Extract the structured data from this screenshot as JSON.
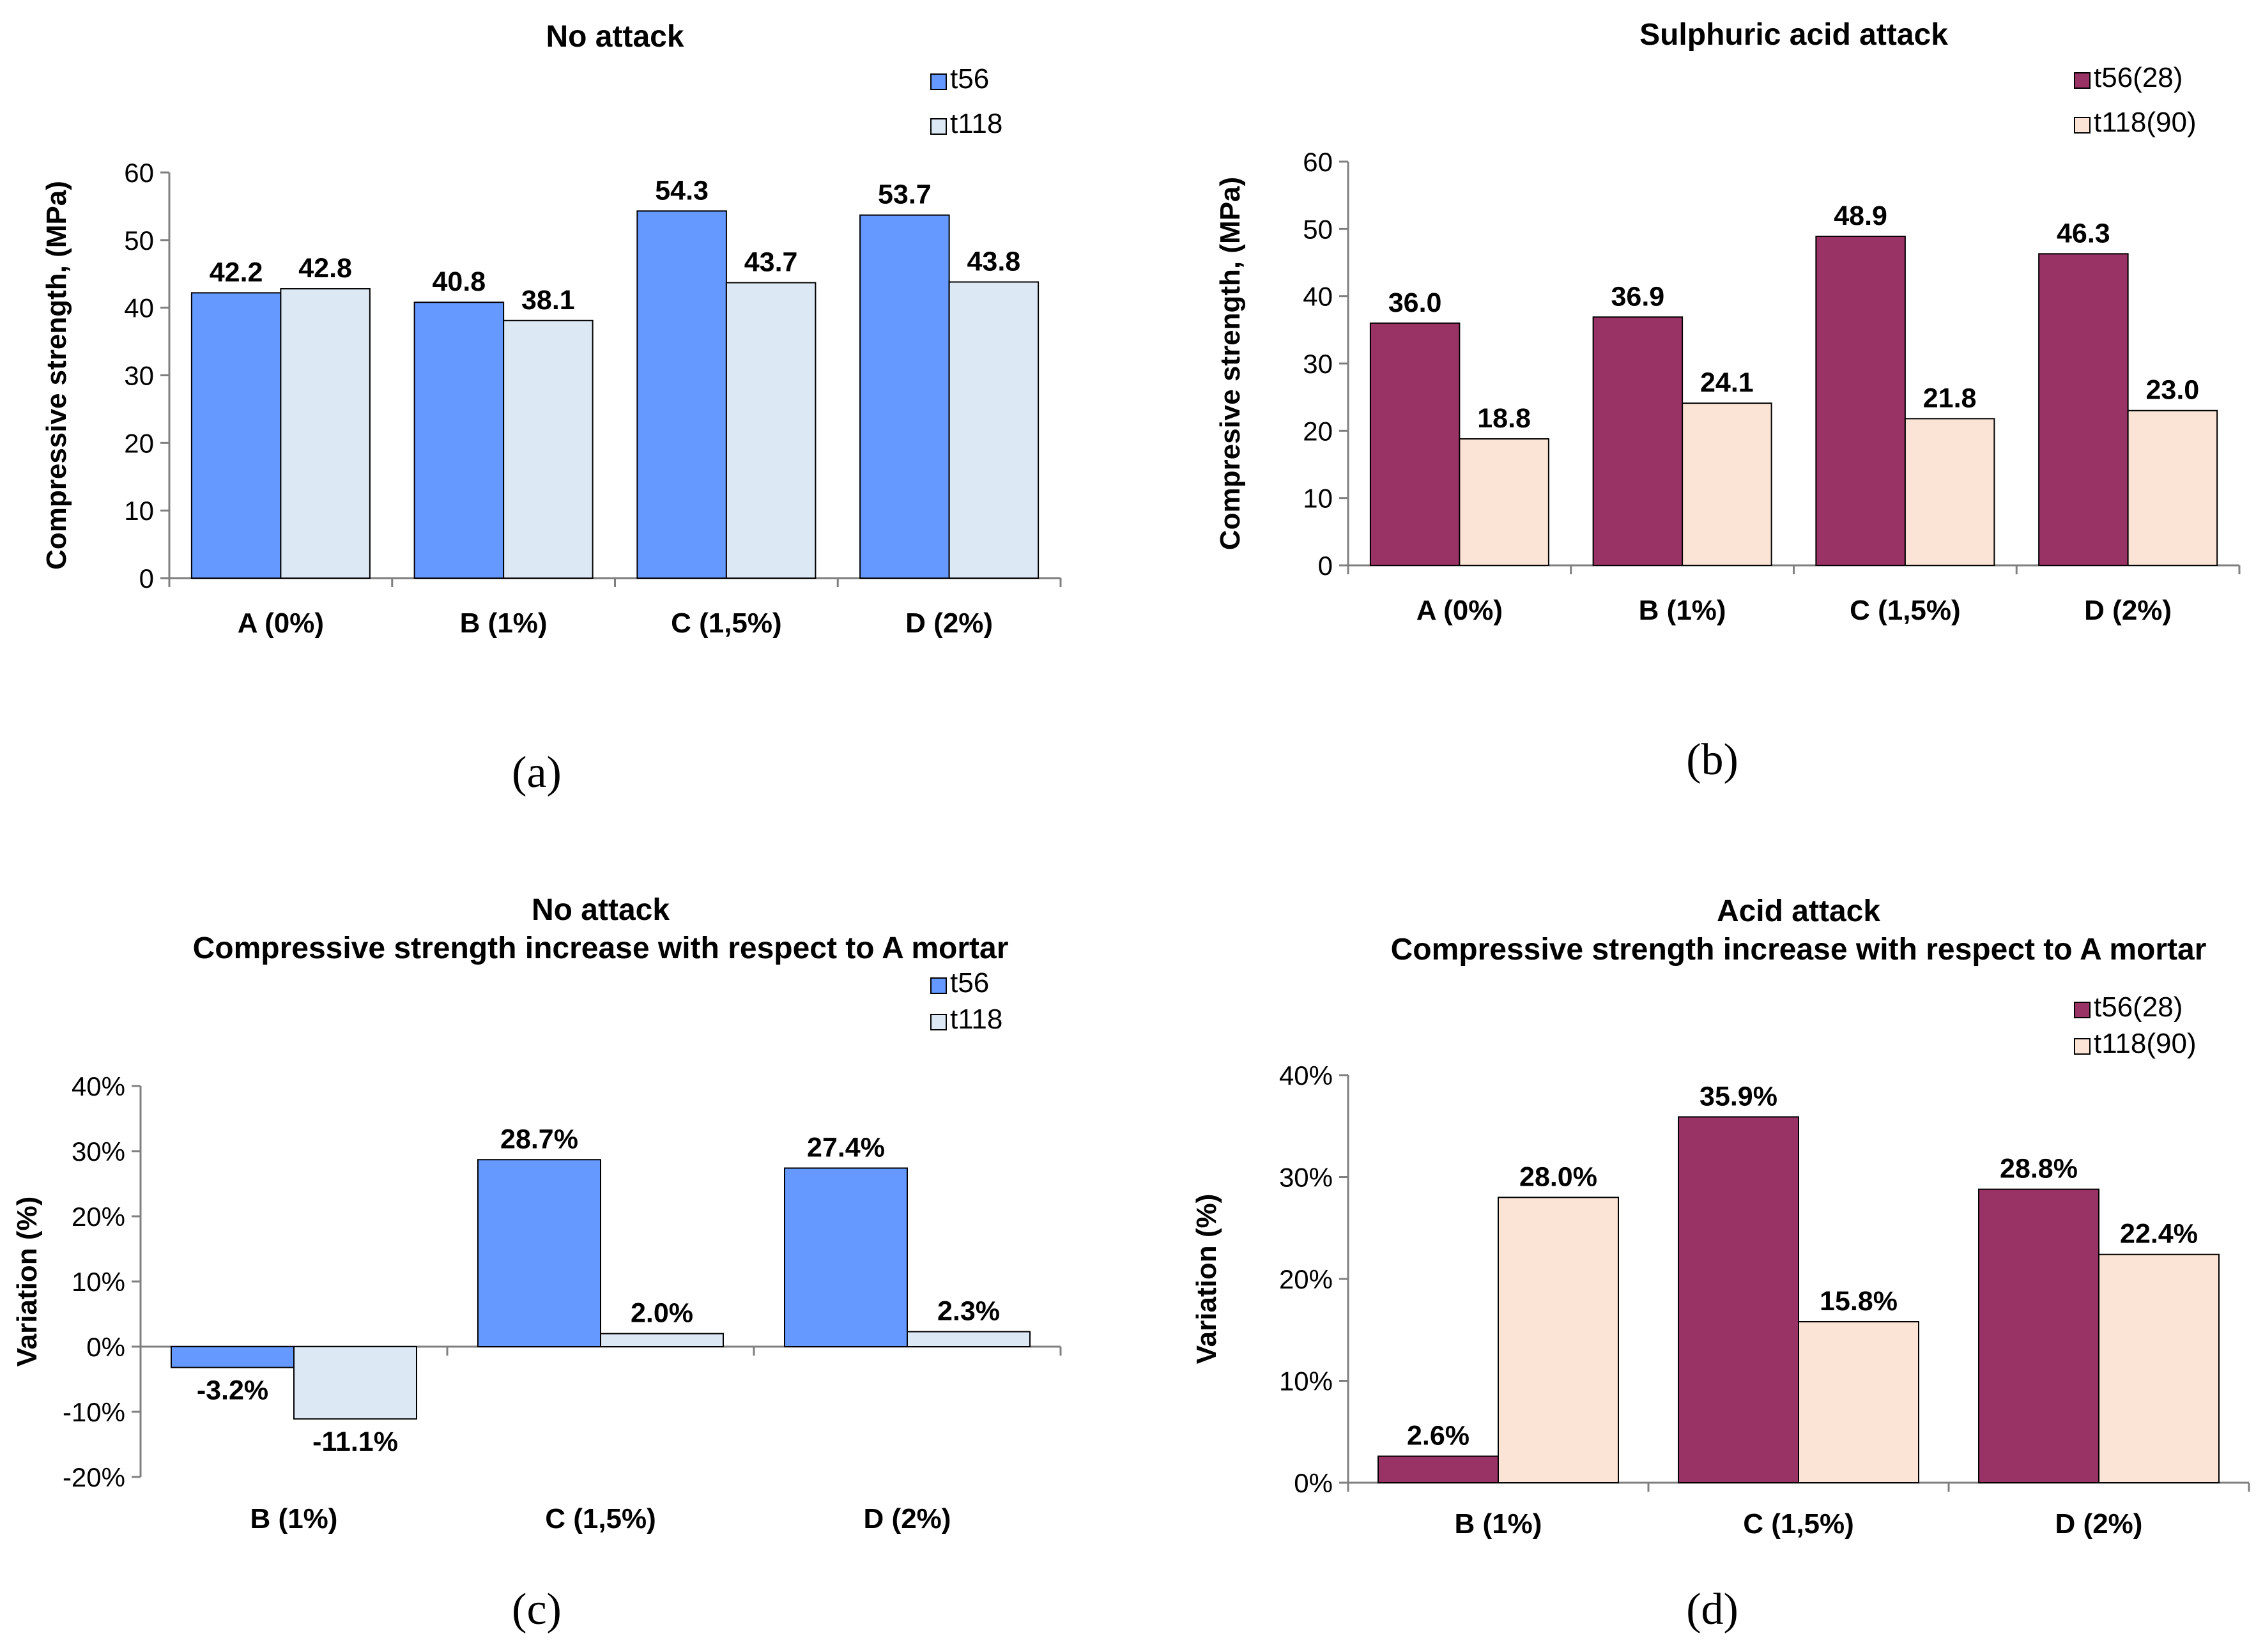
{
  "chart_data": [
    {
      "id": "a",
      "type": "bar",
      "title_lines": [
        "No attack"
      ],
      "ylabel": "Compressive strength, (MPa)",
      "xlabel": "",
      "ylim": [
        0,
        60
      ],
      "yticks": [
        0,
        10,
        20,
        30,
        40,
        50,
        60
      ],
      "ytick_labels": [
        "0",
        "10",
        "20",
        "30",
        "40",
        "50",
        "60"
      ],
      "categories": [
        "A (0%)",
        "B (1%)",
        "C (1,5%)",
        "D (2%)"
      ],
      "series": [
        {
          "name": "t56",
          "values": [
            42.2,
            40.8,
            54.3,
            53.7
          ],
          "labels": [
            "42.2",
            "40.8",
            "54.3",
            "53.7"
          ],
          "color": "#6699ff"
        },
        {
          "name": "t118",
          "values": [
            42.8,
            38.1,
            43.7,
            43.8
          ],
          "labels": [
            "42.8",
            "38.1",
            "43.7",
            "43.8"
          ],
          "color": "#dde8f5"
        }
      ],
      "caption": "(a)"
    },
    {
      "id": "b",
      "type": "bar",
      "title_lines": [
        "Sulphuric acid attack"
      ],
      "ylabel": "Compresive strength, (MPa)",
      "xlabel": "",
      "ylim": [
        0,
        60
      ],
      "yticks": [
        0,
        10,
        20,
        30,
        40,
        50,
        60
      ],
      "ytick_labels": [
        "0",
        "10",
        "20",
        "30",
        "40",
        "50",
        "60"
      ],
      "categories": [
        "A (0%)",
        "B (1%)",
        "C (1,5%)",
        "D (2%)"
      ],
      "series": [
        {
          "name": "t56(28)",
          "values": [
            36.0,
            36.9,
            48.9,
            46.3
          ],
          "labels": [
            "36.0",
            "36.9",
            "48.9",
            "46.3"
          ],
          "color": "#993366"
        },
        {
          "name": "t118(90)",
          "values": [
            18.8,
            24.1,
            21.8,
            23.0
          ],
          "labels": [
            "18.8",
            "24.1",
            "21.8",
            "23.0"
          ],
          "color": "#fbe4d5"
        }
      ],
      "caption": "(b)"
    },
    {
      "id": "c",
      "type": "bar",
      "title_lines": [
        "No attack",
        "Compressive strength increase with respect to A mortar"
      ],
      "ylabel": "Variation (%)",
      "xlabel": "",
      "ylim": [
        -20,
        40
      ],
      "yticks": [
        -20,
        -10,
        0,
        10,
        20,
        30,
        40
      ],
      "ytick_labels": [
        "-20%",
        "-10%",
        "0%",
        "10%",
        "20%",
        "30%",
        "40%"
      ],
      "categories": [
        "B (1%)",
        "C (1,5%)",
        "D (2%)"
      ],
      "series": [
        {
          "name": "t56",
          "values": [
            -3.2,
            28.7,
            27.4
          ],
          "labels": [
            "-3.2%",
            "28.7%",
            "27.4%"
          ],
          "color": "#6699ff"
        },
        {
          "name": "t118",
          "values": [
            -11.1,
            2.0,
            2.3
          ],
          "labels": [
            "-11.1%",
            "2.0%",
            "2.3%"
          ],
          "color": "#dde8f5"
        }
      ],
      "caption": "(c)"
    },
    {
      "id": "d",
      "type": "bar",
      "title_lines": [
        "Acid attack",
        "Compressive strength increase with respect to A mortar"
      ],
      "ylabel": "Variation (%)",
      "xlabel": "",
      "ylim": [
        0,
        40
      ],
      "yticks": [
        0,
        10,
        20,
        30,
        40
      ],
      "ytick_labels": [
        "0%",
        "10%",
        "20%",
        "30%",
        "40%"
      ],
      "categories": [
        "B (1%)",
        "C (1,5%)",
        "D (2%)"
      ],
      "series": [
        {
          "name": "t56(28)",
          "values": [
            2.6,
            35.9,
            28.8
          ],
          "labels": [
            "2.6%",
            "35.9%",
            "28.8%"
          ],
          "color": "#993366"
        },
        {
          "name": "t118(90)",
          "values": [
            28.0,
            15.8,
            22.4
          ],
          "labels": [
            "28.0%",
            "15.8%",
            "22.4%"
          ],
          "color": "#fbe4d5"
        }
      ],
      "caption": "(d)"
    }
  ]
}
